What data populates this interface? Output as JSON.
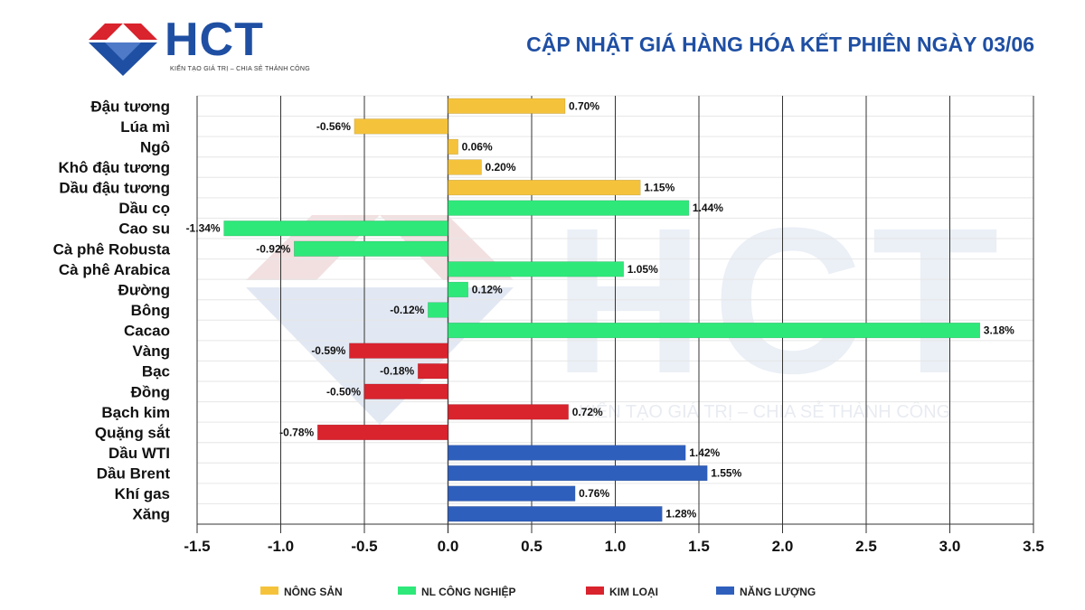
{
  "header": {
    "brand": "HCT",
    "tagline": "KIẾN TẠO GIÁ TRỊ – CHIA SẺ THÀNH CÔNG",
    "title": "CẬP NHẬT GIÁ HÀNG HÓA KẾT PHIÊN NGÀY 03/06"
  },
  "watermark": {
    "brand": "HCT",
    "tagline": "KIẾN TẠO GIÁ TRỊ – CHIA SẺ THÀNH CÔNG"
  },
  "colors": {
    "nong_san": "#f5c33b",
    "nl_cong_nghiep": "#2ee87a",
    "kim_loai": "#d9232d",
    "nang_luong": "#2f5fbd"
  },
  "chart_data": {
    "type": "bar",
    "orientation": "horizontal",
    "title": "CẬP NHẬT GIÁ HÀNG HÓA KẾT PHIÊN NGÀY 03/06",
    "xlim": [
      -1.5,
      3.5
    ],
    "xticks": [
      -1.5,
      -1.0,
      -0.5,
      0.0,
      0.5,
      1.0,
      1.5,
      2.0,
      2.5,
      3.0,
      3.5
    ],
    "xtick_labels": [
      "-1.5",
      "-1.0",
      "-0.5",
      "0.0",
      "0.5",
      "1.0",
      "1.5",
      "2.0",
      "2.5",
      "3.0",
      "3.5"
    ],
    "grid": "vertical",
    "legend_position": "bottom",
    "groups": [
      {
        "key": "nong_san",
        "name": "NÔNG SẢN"
      },
      {
        "key": "nl_cong_nghiep",
        "name": "NL CÔNG NGHIỆP"
      },
      {
        "key": "kim_loai",
        "name": "KIM LOẠI"
      },
      {
        "key": "nang_luong",
        "name": "NĂNG LƯỢNG"
      }
    ],
    "items": [
      {
        "name": "Đậu tương",
        "value": 0.7,
        "label": "0.70%",
        "group": "nong_san"
      },
      {
        "name": "Lúa mì",
        "value": -0.56,
        "label": "-0.56%",
        "group": "nong_san"
      },
      {
        "name": "Ngô",
        "value": 0.06,
        "label": "0.06%",
        "group": "nong_san"
      },
      {
        "name": "Khô đậu tương",
        "value": 0.2,
        "label": "0.20%",
        "group": "nong_san"
      },
      {
        "name": "Dầu đậu tương",
        "value": 1.15,
        "label": "1.15%",
        "group": "nong_san"
      },
      {
        "name": "Dầu cọ",
        "value": 1.44,
        "label": "1.44%",
        "group": "nl_cong_nghiep"
      },
      {
        "name": "Cao su",
        "value": -1.34,
        "label": "-1.34%",
        "group": "nl_cong_nghiep"
      },
      {
        "name": "Cà phê Robusta",
        "value": -0.92,
        "label": "-0.92%",
        "group": "nl_cong_nghiep"
      },
      {
        "name": "Cà phê Arabica",
        "value": 1.05,
        "label": "1.05%",
        "group": "nl_cong_nghiep"
      },
      {
        "name": "Đường",
        "value": 0.12,
        "label": "0.12%",
        "group": "nl_cong_nghiep"
      },
      {
        "name": "Bông",
        "value": -0.12,
        "label": "-0.12%",
        "group": "nl_cong_nghiep"
      },
      {
        "name": "Cacao",
        "value": 3.18,
        "label": "3.18%",
        "group": "nl_cong_nghiep"
      },
      {
        "name": "Vàng",
        "value": -0.59,
        "label": "-0.59%",
        "group": "kim_loai"
      },
      {
        "name": "Bạc",
        "value": -0.18,
        "label": "-0.18%",
        "group": "kim_loai"
      },
      {
        "name": "Đồng",
        "value": -0.5,
        "label": "-0.50%",
        "group": "kim_loai"
      },
      {
        "name": "Bạch kim",
        "value": 0.72,
        "label": "0.72%",
        "group": "kim_loai"
      },
      {
        "name": "Quặng sắt",
        "value": -0.78,
        "label": "-0.78%",
        "group": "kim_loai"
      },
      {
        "name": "Dầu WTI",
        "value": 1.42,
        "label": "1.42%",
        "group": "nang_luong"
      },
      {
        "name": "Dầu Brent",
        "value": 1.55,
        "label": "1.55%",
        "group": "nang_luong"
      },
      {
        "name": "Khí gas",
        "value": 0.76,
        "label": "0.76%",
        "group": "nang_luong"
      },
      {
        "name": "Xăng",
        "value": 1.28,
        "label": "1.28%",
        "group": "nang_luong"
      }
    ]
  }
}
